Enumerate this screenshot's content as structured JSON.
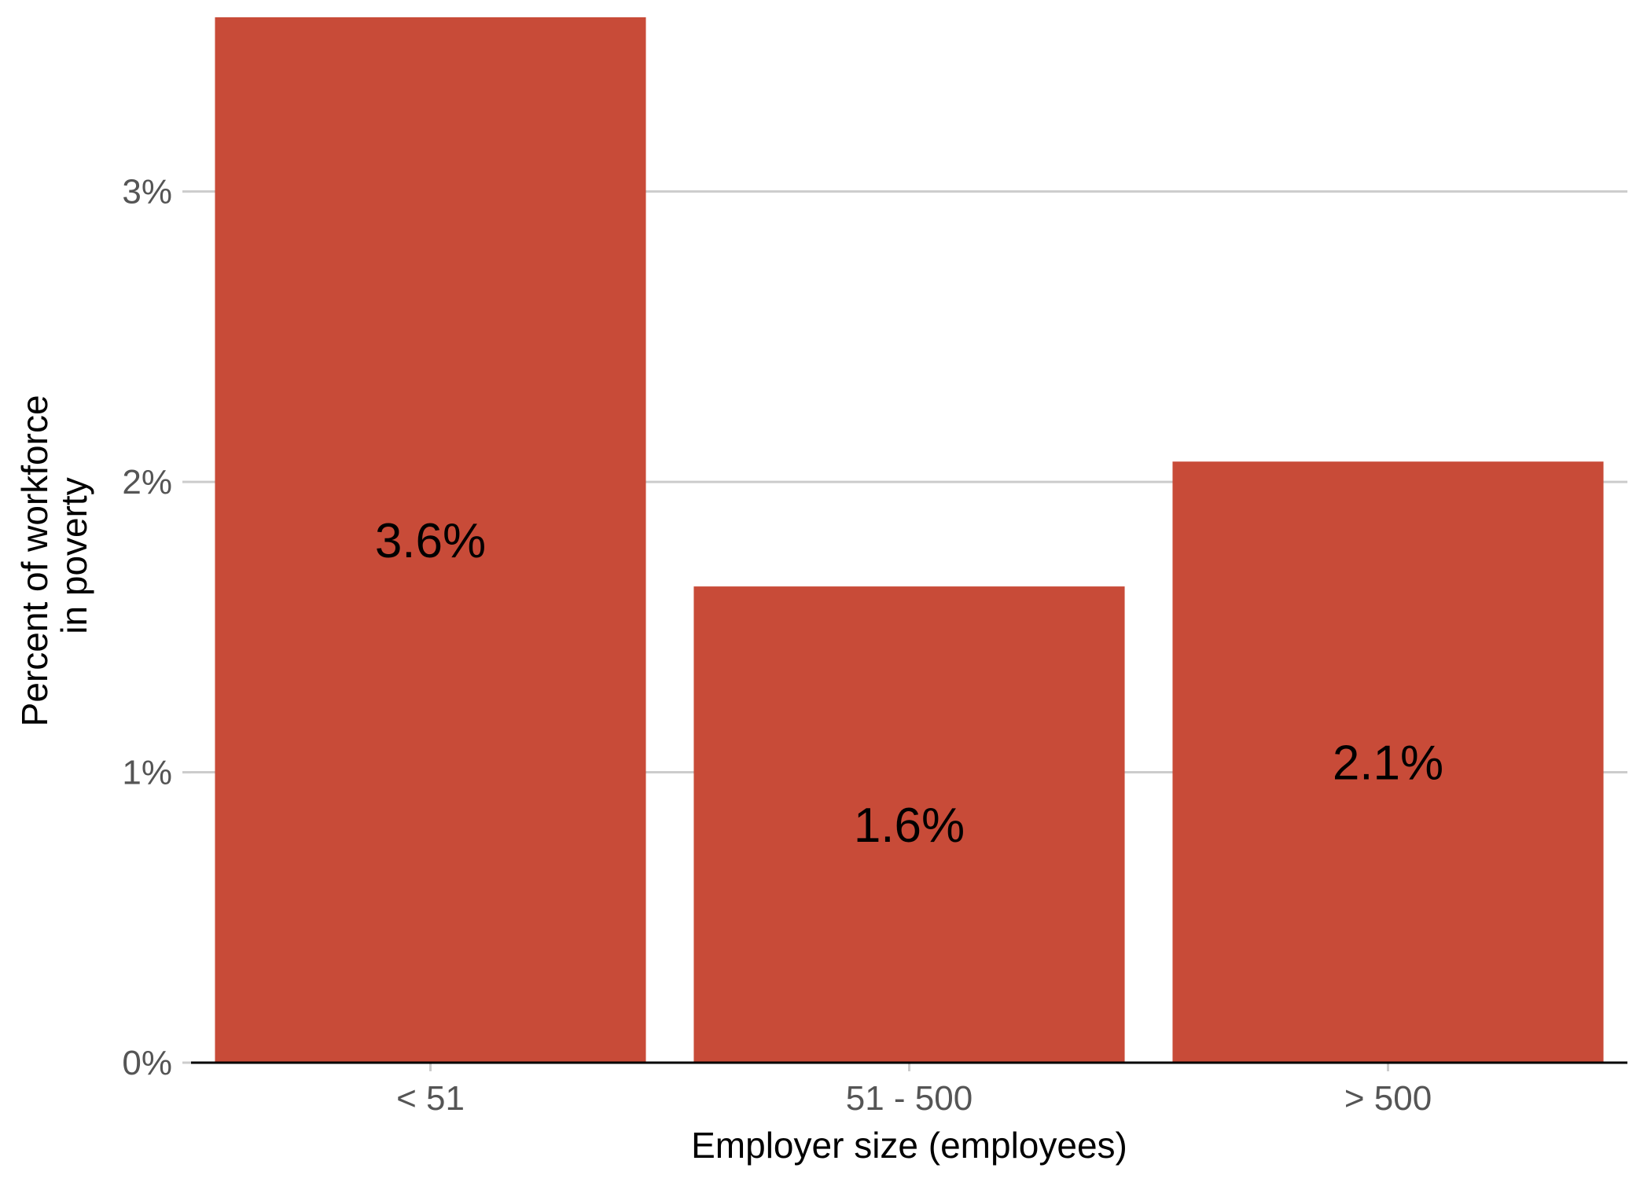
{
  "chart_data": {
    "type": "bar",
    "categories": [
      "< 51",
      "51 - 500",
      "> 500"
    ],
    "values": [
      3.6,
      1.64,
      2.07
    ],
    "data_labels": [
      "3.6%",
      "1.6%",
      "2.1%"
    ],
    "xlabel": "Employer size (employees)",
    "ylabel_lines": [
      "Percent of workforce",
      "in poverty"
    ],
    "ylim": [
      0,
      3.6
    ],
    "yticks": [
      0,
      1,
      2,
      3
    ],
    "ytick_labels": [
      "0%",
      "1%",
      "2%",
      "3%"
    ],
    "grid": "horizontal major",
    "legend": "none",
    "bar_color": "#C84B38"
  }
}
